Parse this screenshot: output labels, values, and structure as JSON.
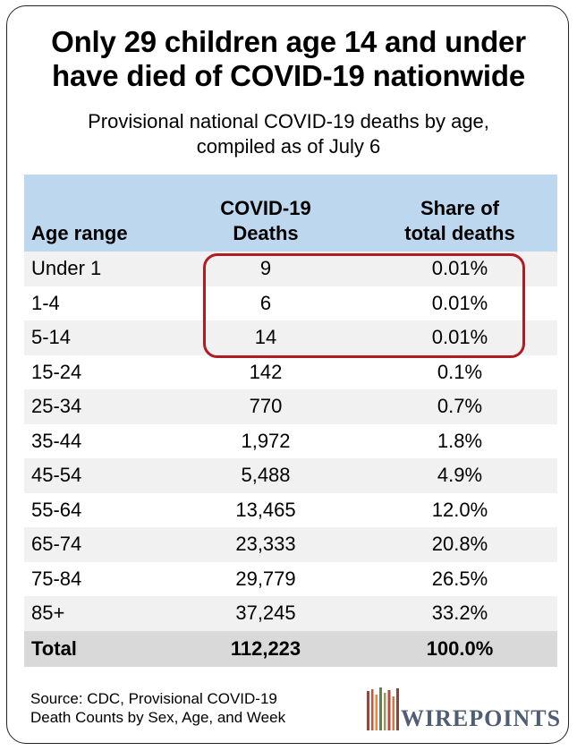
{
  "title_line1": "Only 29 children age 14 and under",
  "title_line2": "have died of COVID-19 nationwide",
  "subtitle_line1": "Provisional national COVID-19 deaths by age,",
  "subtitle_line2": "compiled as of July 6",
  "headers": {
    "age": "Age range",
    "deaths_line1": "COVID-19",
    "deaths_line2": "Deaths",
    "share_line1": "Share of",
    "share_line2": "total deaths"
  },
  "rows": [
    {
      "age": "Under 1",
      "deaths": "9",
      "share": "0.01%"
    },
    {
      "age": "1-4",
      "deaths": "6",
      "share": "0.01%"
    },
    {
      "age": "5-14",
      "deaths": "14",
      "share": "0.01%"
    },
    {
      "age": "15-24",
      "deaths": "142",
      "share": "0.1%"
    },
    {
      "age": "25-34",
      "deaths": "770",
      "share": "0.7%"
    },
    {
      "age": "35-44",
      "deaths": "1,972",
      "share": "1.8%"
    },
    {
      "age": "45-54",
      "deaths": "5,488",
      "share": "4.9%"
    },
    {
      "age": "55-64",
      "deaths": "13,465",
      "share": "12.0%"
    },
    {
      "age": "65-74",
      "deaths": "23,333",
      "share": "20.8%"
    },
    {
      "age": "75-84",
      "deaths": "29,779",
      "share": "26.5%"
    },
    {
      "age": "85+",
      "deaths": "37,245",
      "share": "33.2%"
    }
  ],
  "total": {
    "age": "Total",
    "deaths": "112,223",
    "share": "100.0%"
  },
  "source_line1": "Source: CDC, Provisional COVID-19",
  "source_line2": "Death Counts by Sex, Age, and Week",
  "logo_text": "WIREPOINTS",
  "colors": {
    "header_bg": "#bdd7ee",
    "alt_row_bg": "#f1f1f1",
    "total_bg": "#d9d9d9",
    "highlight": "#b01c24",
    "logo_text": "#4f5e74"
  },
  "chart_data": {
    "type": "table",
    "title": "Only 29 children age 14 and under have died of COVID-19 nationwide",
    "subtitle": "Provisional national COVID-19 deaths by age, compiled as of July 6",
    "columns": [
      "Age range",
      "COVID-19 Deaths",
      "Share of total deaths"
    ],
    "categories": [
      "Under 1",
      "1-4",
      "5-14",
      "15-24",
      "25-34",
      "35-44",
      "45-54",
      "55-64",
      "65-74",
      "75-84",
      "85+"
    ],
    "series": [
      {
        "name": "COVID-19 Deaths",
        "values": [
          9,
          6,
          14,
          142,
          770,
          1972,
          5488,
          13465,
          23333,
          29779,
          37245
        ]
      },
      {
        "name": "Share of total deaths",
        "values": [
          0.01,
          0.01,
          0.01,
          0.1,
          0.7,
          1.8,
          4.9,
          12.0,
          20.8,
          26.5,
          33.2
        ]
      }
    ],
    "total": {
      "deaths": 112223,
      "share": 100.0
    },
    "highlighted_rows": [
      "Under 1",
      "1-4",
      "5-14"
    ]
  }
}
